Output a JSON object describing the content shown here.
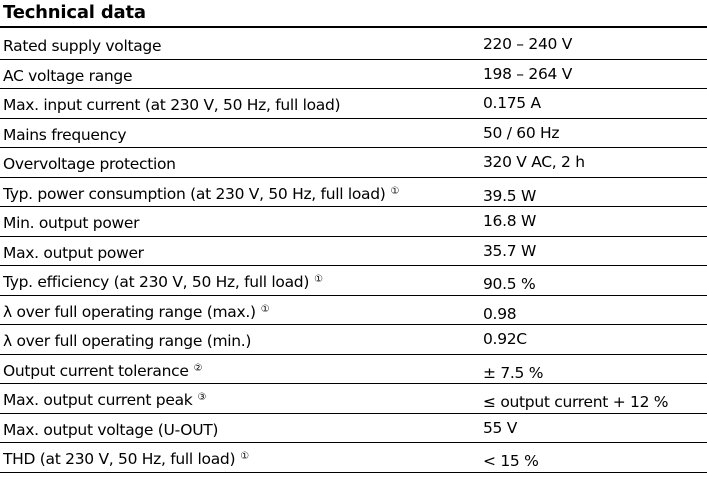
{
  "title": "Technical data",
  "rows": [
    {
      "label": "Rated supply voltage",
      "note": "",
      "value": "220 – 240 V"
    },
    {
      "label": "AC voltage range",
      "note": "",
      "value": "198 – 264 V"
    },
    {
      "label": "Max. input current (at 230 V, 50 Hz, full load)",
      "note": "",
      "value": "0.175 A"
    },
    {
      "label": "Mains frequency",
      "note": "",
      "value": "50 / 60 Hz"
    },
    {
      "label": "Overvoltage protection",
      "note": "",
      "value": "320 V AC, 2 h"
    },
    {
      "label": "Typ. power consumption (at 230 V, 50 Hz, full load)",
      "note": "①",
      "value": "39.5 W"
    },
    {
      "label": "Min. output power",
      "note": "",
      "value": "16.8 W"
    },
    {
      "label": "Max. output power",
      "note": "",
      "value": "35.7 W"
    },
    {
      "label": "Typ. efficiency (at 230 V, 50 Hz, full load)",
      "note": "①",
      "value": "90.5 %"
    },
    {
      "label": "λ over full operating range (max.)",
      "note": "①",
      "value": "0.98"
    },
    {
      "label": "λ over full operating range (min.)",
      "note": "",
      "value": "0.92C"
    },
    {
      "label": "Output current tolerance",
      "note": "②",
      "value": "± 7.5 %"
    },
    {
      "label": "Max. output current peak",
      "note": "③",
      "value": "≤ output current + 12 %"
    },
    {
      "label": "Max. output voltage (U-OUT)",
      "note": "",
      "value": "55 V"
    },
    {
      "label": "THD (at 230 V, 50 Hz, full load)",
      "note": "①",
      "value": "< 15 %"
    }
  ]
}
